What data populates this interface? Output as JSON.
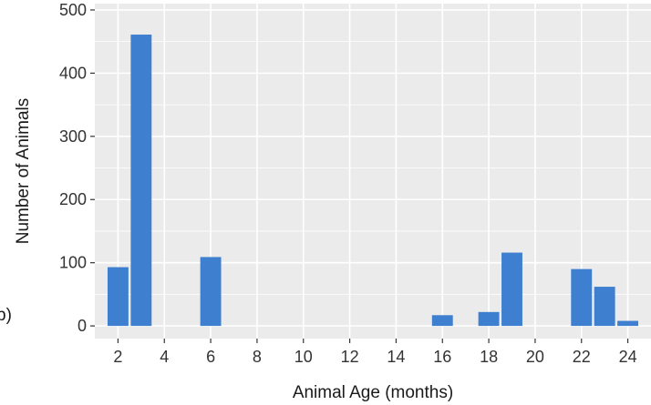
{
  "panel_label": "b)",
  "chart_data": {
    "type": "bar",
    "xlabel": "Animal Age (months)",
    "ylabel": "Number of Animals",
    "x_ticks": [
      2,
      4,
      6,
      8,
      10,
      12,
      14,
      16,
      18,
      20,
      22,
      24
    ],
    "y_ticks": [
      0,
      100,
      200,
      300,
      400,
      500
    ],
    "xlim": [
      1,
      25
    ],
    "ylim": [
      -20,
      510
    ],
    "x": [
      2,
      3,
      6,
      16,
      18,
      19,
      22,
      23,
      24
    ],
    "values": [
      93,
      461,
      109,
      17,
      22,
      116,
      90,
      62,
      8
    ],
    "bar_color": "#3f7fcf",
    "panel_background": "#ebebeb",
    "gridline_color": "#ffffff",
    "grid": true
  }
}
